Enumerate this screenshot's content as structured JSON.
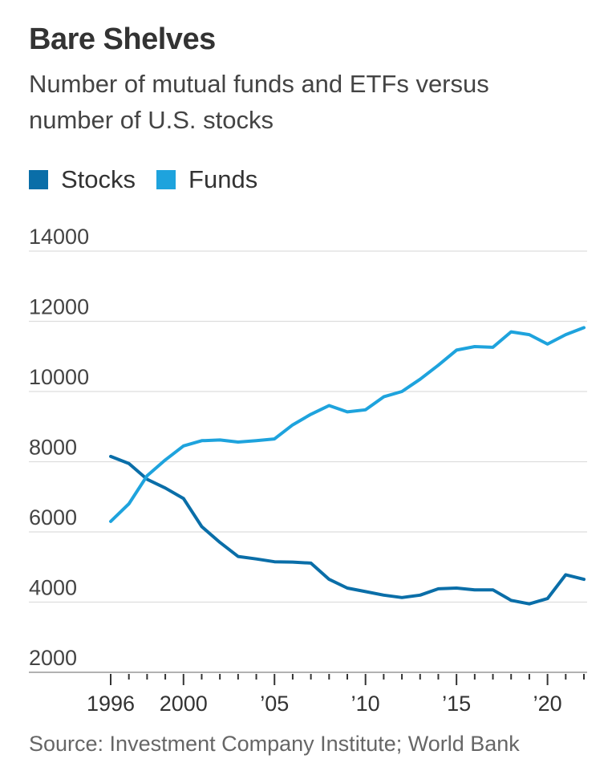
{
  "header": {
    "title": "Bare Shelves",
    "subtitle": "Number of mutual funds and ETFs versus number of U.S. stocks"
  },
  "legend": [
    {
      "label": "Stocks",
      "color": "#0a6ea8"
    },
    {
      "label": "Funds",
      "color": "#1ea3dd"
    }
  ],
  "footer": {
    "source": "Source: Investment Company Institute; World Bank"
  },
  "chart_data": {
    "type": "line",
    "title": "Bare Shelves",
    "subtitle": "Number of mutual funds and ETFs versus number of U.S. stocks",
    "xlabel": "",
    "ylabel": "",
    "x": [
      1996,
      1997,
      1998,
      1999,
      2000,
      2001,
      2002,
      2003,
      2004,
      2005,
      2006,
      2007,
      2008,
      2009,
      2010,
      2011,
      2012,
      2013,
      2014,
      2015,
      2016,
      2017,
      2018,
      2019,
      2020,
      2021,
      2022
    ],
    "series": [
      {
        "name": "Stocks",
        "color": "#0a6ea8",
        "values": [
          8150,
          7950,
          7500,
          7250,
          6950,
          6150,
          5700,
          5300,
          5230,
          5150,
          5140,
          5110,
          4650,
          4400,
          4300,
          4200,
          4130,
          4200,
          4380,
          4400,
          4350,
          4350,
          4050,
          3950,
          4100,
          4780,
          4650
        ]
      },
      {
        "name": "Funds",
        "color": "#1ea3dd",
        "values": [
          6300,
          6800,
          7600,
          8050,
          8450,
          8600,
          8620,
          8560,
          8600,
          8650,
          9050,
          9350,
          9600,
          9420,
          9480,
          9850,
          10000,
          10350,
          10750,
          11180,
          11280,
          11260,
          11700,
          11620,
          11350,
          11620,
          11820
        ]
      }
    ],
    "ylim": [
      2000,
      14000
    ],
    "yticks": [
      "2000",
      "4000",
      "6000",
      "8000",
      "10000",
      "12000",
      "14000"
    ],
    "xlim": [
      1996,
      2022
    ],
    "xticks": [
      {
        "value": 1996,
        "label": "1996"
      },
      {
        "value": 2000,
        "label": "2000"
      },
      {
        "value": 2005,
        "label": "’05"
      },
      {
        "value": 2010,
        "label": "’10"
      },
      {
        "value": 2015,
        "label": "’15"
      },
      {
        "value": 2020,
        "label": "’20"
      }
    ],
    "grid": true,
    "legend_position": "top-left",
    "source": "Source: Investment Company Institute; World Bank"
  }
}
